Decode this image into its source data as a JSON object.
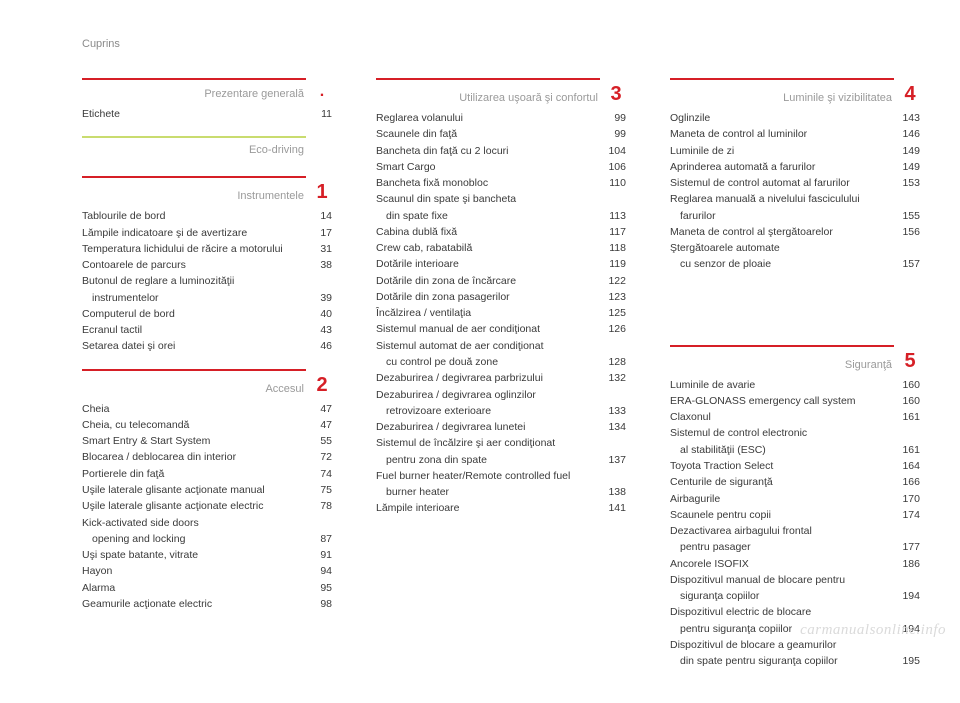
{
  "doc_header": "Cuprins",
  "watermark": "carmanualsonline.info",
  "colors": {
    "rule_red": "#d61f26",
    "rule_green": "#c9dc6f",
    "num_red": "#d61f26",
    "title_grey": "#9a9a9a",
    "text": "#3a3a3a",
    "bg": "#ffffff"
  },
  "columns": [
    {
      "sections": [
        {
          "title": "Prezentare generală",
          "num": ".",
          "num_color": "#d61f26",
          "rule_color": "#d61f26",
          "entries": [
            {
              "label": "Etichete",
              "page": "11"
            }
          ]
        },
        {
          "title": "Eco-driving",
          "num": "",
          "num_color": "#cfcfcf",
          "rule_color": "#c9dc6f",
          "entries": []
        },
        {
          "title": "Instrumentele",
          "num": "1",
          "num_color": "#d61f26",
          "rule_color": "#d61f26",
          "entries": [
            {
              "label": "Tablourile de bord",
              "page": "14"
            },
            {
              "label": "Lămpile indicatoare şi de avertizare",
              "page": "17"
            },
            {
              "label": "Temperatura lichidului de răcire a motorului",
              "page": "31"
            },
            {
              "label": "Contoarele de parcurs",
              "page": "38"
            },
            {
              "label": "Butonul de reglare a luminozităţii",
              "page": ""
            },
            {
              "label": "instrumentelor",
              "cont": true,
              "page": "39"
            },
            {
              "label": "Computerul de bord",
              "page": "40"
            },
            {
              "label": "Ecranul tactil",
              "page": "43"
            },
            {
              "label": "Setarea datei şi orei",
              "page": "46"
            }
          ]
        },
        {
          "title": "Accesul",
          "num": "2",
          "num_color": "#d61f26",
          "rule_color": "#d61f26",
          "entries": [
            {
              "label": "Cheia",
              "page": "47"
            },
            {
              "label": "Cheia, cu telecomandă",
              "page": "47"
            },
            {
              "label": "Smart Entry & Start System",
              "page": "55"
            },
            {
              "label": "Blocarea / deblocarea din interior",
              "page": "72"
            },
            {
              "label": "Portierele din faţă",
              "page": "74"
            },
            {
              "label": "Uşile laterale glisante acţionate manual",
              "page": "75"
            },
            {
              "label": "Uşile laterale glisante acţionate electric",
              "page": "78"
            },
            {
              "label": "Kick-activated side doors",
              "page": ""
            },
            {
              "label": "opening and locking",
              "cont": true,
              "page": "87"
            },
            {
              "label": "Uşi spate batante, vitrate",
              "page": "91"
            },
            {
              "label": "Hayon",
              "page": "94"
            },
            {
              "label": "Alarma",
              "page": "95"
            },
            {
              "label": "Geamurile acţionate electric",
              "page": "98"
            }
          ]
        }
      ]
    },
    {
      "sections": [
        {
          "title": "Utilizarea uşoară şi confortul",
          "num": "3",
          "num_color": "#d61f26",
          "rule_color": "#d61f26",
          "entries": [
            {
              "label": "Reglarea volanului",
              "page": "99"
            },
            {
              "label": "Scaunele din faţă",
              "page": "99"
            },
            {
              "label": "Bancheta din faţă cu 2 locuri",
              "page": "104"
            },
            {
              "label": "Smart Cargo",
              "page": "106"
            },
            {
              "label": "Bancheta fixă monobloc",
              "page": "110"
            },
            {
              "label": "Scaunul din spate şi bancheta",
              "page": ""
            },
            {
              "label": "din spate fixe",
              "cont": true,
              "page": "113"
            },
            {
              "label": "Cabina dublă fixă",
              "page": "117"
            },
            {
              "label": "Crew cab, rabatabilă",
              "page": "118"
            },
            {
              "label": "Dotările interioare",
              "page": "119"
            },
            {
              "label": "Dotările din zona de încărcare",
              "page": "122"
            },
            {
              "label": "Dotările din zona pasagerilor",
              "page": "123"
            },
            {
              "label": "Încălzirea / ventilaţia",
              "page": "125"
            },
            {
              "label": "Sistemul manual de aer condiţionat",
              "page": "126"
            },
            {
              "label": "Sistemul automat de aer condiţionat",
              "page": ""
            },
            {
              "label": "cu control pe două zone",
              "cont": true,
              "page": "128"
            },
            {
              "label": "Dezaburirea / degivrarea parbrizului",
              "page": "132"
            },
            {
              "label": "Dezaburirea / degivrarea oglinzilor",
              "page": ""
            },
            {
              "label": "retrovizoare exterioare",
              "cont": true,
              "page": "133"
            },
            {
              "label": "Dezaburirea / degivrarea lunetei",
              "page": "134"
            },
            {
              "label": "Sistemul de încălzire şi aer condiţionat",
              "page": ""
            },
            {
              "label": "pentru zona din spate",
              "cont": true,
              "page": "137"
            },
            {
              "label": "Fuel burner heater/Remote controlled fuel",
              "page": ""
            },
            {
              "label": "burner heater",
              "cont": true,
              "page": "138"
            },
            {
              "label": "Lămpile interioare",
              "page": "141"
            }
          ]
        }
      ]
    },
    {
      "sections": [
        {
          "title": "Luminile şi vizibilitatea",
          "num": "4",
          "num_color": "#d61f26",
          "rule_color": "#d61f26",
          "entries": [
            {
              "label": "Oglinzile",
              "page": "143"
            },
            {
              "label": "Maneta de control al luminilor",
              "page": "146"
            },
            {
              "label": "Luminile de zi",
              "page": "149"
            },
            {
              "label": "Aprinderea automată a farurilor",
              "page": "149"
            },
            {
              "label": "Sistemul de control automat al farurilor",
              "page": "153"
            },
            {
              "label": "Reglarea manuală a nivelului fasciculului",
              "page": ""
            },
            {
              "label": "farurilor",
              "cont": true,
              "page": "155"
            },
            {
              "label": "Maneta de control al ştergătoarelor",
              "page": "156"
            },
            {
              "label": "Ştergătoarele automate",
              "page": ""
            },
            {
              "label": "cu senzor de ploaie",
              "cont": true,
              "page": "157"
            }
          ]
        },
        {
          "title": "Siguranţă",
          "num": "5",
          "num_color": "#d61f26",
          "rule_color": "#d61f26",
          "spacer_before": 58,
          "entries": [
            {
              "label": "Luminile de avarie",
              "page": "160"
            },
            {
              "label": "ERA-GLONASS emergency call system",
              "page": "160"
            },
            {
              "label": "Claxonul",
              "page": "161"
            },
            {
              "label": "Sistemul de control electronic",
              "page": ""
            },
            {
              "label": "al stabilităţii (ESC)",
              "cont": true,
              "page": "161"
            },
            {
              "label": "Toyota Traction Select",
              "page": "164"
            },
            {
              "label": "Centurile de siguranţă",
              "page": "166"
            },
            {
              "label": "Airbagurile",
              "page": "170"
            },
            {
              "label": "Scaunele pentru copii",
              "page": "174"
            },
            {
              "label": "Dezactivarea airbagului frontal",
              "page": ""
            },
            {
              "label": "pentru pasager",
              "cont": true,
              "page": "177"
            },
            {
              "label": "Ancorele ISOFIX",
              "page": "186"
            },
            {
              "label": "Dispozitivul manual de blocare pentru",
              "page": ""
            },
            {
              "label": "siguranţa copiilor",
              "cont": true,
              "page": "194"
            },
            {
              "label": "Dispozitivul electric de blocare",
              "page": ""
            },
            {
              "label": "pentru siguranţa copiilor",
              "cont": true,
              "page": "194"
            },
            {
              "label": "Dispozitivul de blocare a geamurilor",
              "page": ""
            },
            {
              "label": "din spate pentru siguranţa copiilor",
              "cont": true,
              "page": "195"
            }
          ]
        }
      ]
    }
  ]
}
